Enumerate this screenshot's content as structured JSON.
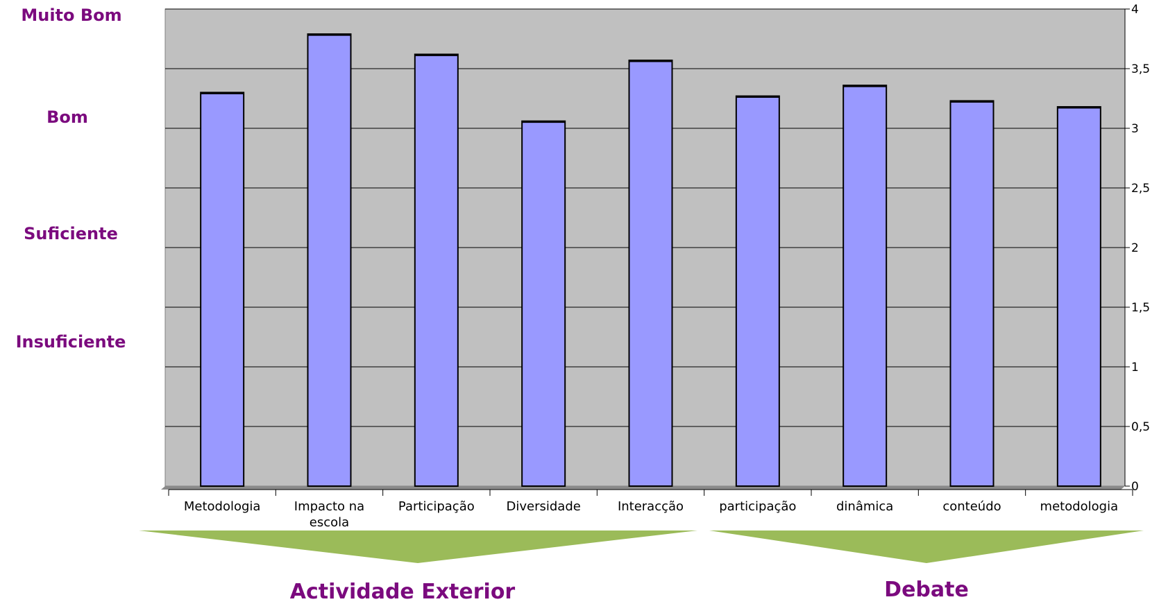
{
  "rating_labels": [
    "Muito Bom",
    "Bom",
    "Suficiente",
    "Insuficiente"
  ],
  "groups": [
    {
      "label": "Actividade Exterior"
    },
    {
      "label": "Debate"
    }
  ],
  "colors": {
    "plot_background": "#c0c0c0",
    "bar_fill": "#9999ff",
    "bar_stroke": "#000000",
    "grid": "#000000",
    "rating_text": "#7b0a7e",
    "group_arrow": "#9bbb59"
  },
  "chart_data": {
    "type": "bar",
    "categories": [
      "Metodologia",
      "Impacto na escola",
      "Participação",
      "Diversidade",
      "Interacção",
      "participação",
      "dinâmica",
      "conteúdo",
      "metodologia"
    ],
    "values": [
      3.3,
      3.79,
      3.62,
      3.06,
      3.57,
      3.27,
      3.36,
      3.23,
      3.18
    ],
    "yticks": [
      "0",
      "0,5",
      "1",
      "1,5",
      "2",
      "2,5",
      "3",
      "3,5",
      "4"
    ],
    "ylim": [
      0,
      4
    ],
    "y_axis_side": "right",
    "grid": true,
    "legend": false
  }
}
